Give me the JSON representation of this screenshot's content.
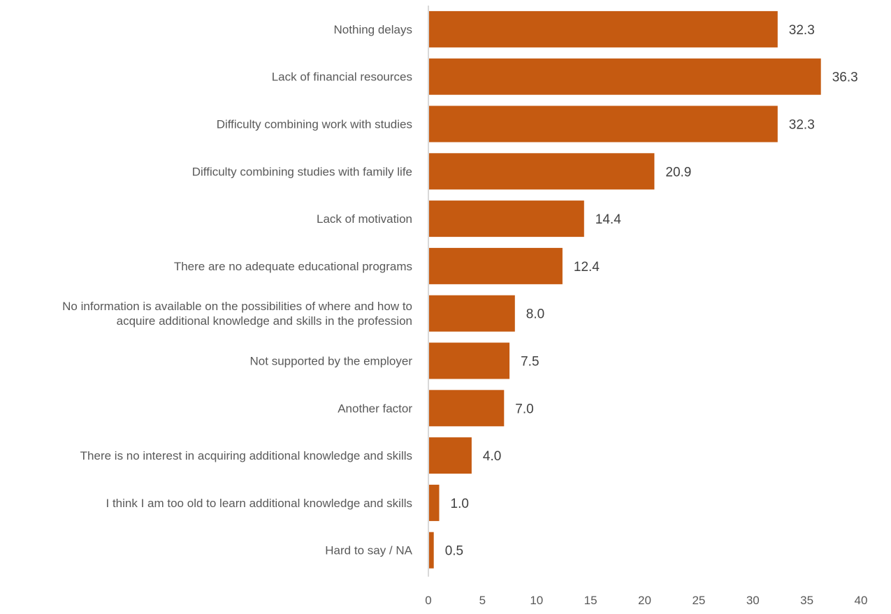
{
  "chart_data": {
    "type": "bar",
    "orientation": "horizontal",
    "categories": [
      "Nothing delays",
      "Lack of financial resources",
      "Difficulty combining work with studies",
      "Difficulty combining studies with family life",
      "Lack of motivation",
      "There are no adequate educational programs",
      "No information is available on the possibilities of where and how to acquire additional knowledge and skills in the profession",
      "Not supported by the employer",
      "Another factor",
      "There is no interest in acquiring additional knowledge and skills",
      "I think I am too old to learn additional knowledge and skills",
      "Hard to say / NA"
    ],
    "category_lines": [
      [
        "Nothing delays"
      ],
      [
        "Lack of financial resources"
      ],
      [
        "Difficulty combining work with studies"
      ],
      [
        "Difficulty combining studies with family life"
      ],
      [
        "Lack of motivation"
      ],
      [
        "There are no adequate educational programs"
      ],
      [
        "No information is available on the possibilities of where and how to",
        "acquire additional knowledge and skills in the profession"
      ],
      [
        "Not supported by the employer"
      ],
      [
        "Another factor"
      ],
      [
        "There is no interest in acquiring additional knowledge and skills"
      ],
      [
        "I think I am too old to learn additional knowledge and skills"
      ],
      [
        "Hard to say / NA"
      ]
    ],
    "values": [
      32.3,
      36.3,
      32.3,
      20.9,
      14.4,
      12.4,
      8.0,
      7.5,
      7.0,
      4.0,
      1.0,
      0.5
    ],
    "value_labels": [
      "32.3",
      "36.3",
      "32.3",
      "20.9",
      "14.4",
      "12.4",
      "8.0",
      "7.5",
      "7.0",
      "4.0",
      "1.0",
      "0.5"
    ],
    "xlim": [
      0,
      40
    ],
    "xticks": [
      "0",
      "5",
      "10",
      "15",
      "20",
      "25",
      "30",
      "35",
      "40"
    ],
    "title": "",
    "xlabel": "",
    "ylabel": "",
    "grid": false,
    "legend": "none",
    "bar_color": "#C55A11",
    "axis_color": "#D9D9D9"
  }
}
